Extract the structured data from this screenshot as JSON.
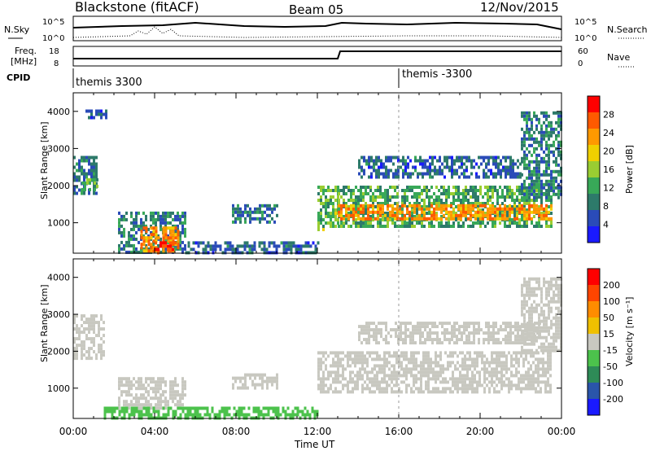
{
  "header": {
    "station": "Blackstone (fitACF)",
    "beam": "Beam 05",
    "date": "12/Nov/2015"
  },
  "top_panels": {
    "nsky_label": "N.Sky",
    "nsearch_label": "N.Search",
    "freq_label_1": "Freq.",
    "freq_label_2": "[MHz]",
    "nave_label": "Nave",
    "cpid_label": "CPID",
    "left_ticks_noise": [
      "10^5",
      "10^0"
    ],
    "right_ticks_noise": [
      "10^5",
      "10^0"
    ],
    "left_ticks_freq": [
      "18",
      "8"
    ],
    "right_ticks_nave": [
      "60",
      "0"
    ],
    "cpid_entries": [
      {
        "hour": 0.1,
        "name": "themis 3300"
      },
      {
        "hour": 16.0,
        "name": "themis -3300"
      }
    ]
  },
  "chart_data": [
    {
      "type": "heatmap",
      "name": "power",
      "ylabel": "Slant Range [km]",
      "xlim_hours": [
        0,
        24
      ],
      "ylim_km": [
        180,
        4500
      ],
      "yticks": [
        1000,
        2000,
        3000,
        4000
      ],
      "colorbar": {
        "label": "Power [dB]",
        "ticks": [
          4,
          8,
          12,
          16,
          20,
          24,
          28
        ],
        "colors": [
          "#1a1aff",
          "#2a4bb8",
          "#2d7a6a",
          "#38a858",
          "#9acd32",
          "#f0d000",
          "#ff9900",
          "#ff5a00",
          "#ff0000"
        ],
        "range": [
          0,
          32
        ]
      },
      "regions": [
        {
          "t": [
            0.0,
            1.2
          ],
          "r": [
            1800,
            2800
          ],
          "level": 8
        },
        {
          "t": [
            0.4,
            1.2
          ],
          "r": [
            1900,
            2200
          ],
          "level": 14
        },
        {
          "t": [
            0.6,
            1.6
          ],
          "r": [
            3800,
            4050
          ],
          "level": 6
        },
        {
          "t": [
            2.2,
            5.5
          ],
          "r": [
            200,
            1300
          ],
          "level": 9
        },
        {
          "t": [
            3.3,
            5.2
          ],
          "r": [
            200,
            900
          ],
          "level": 24
        },
        {
          "t": [
            4.0,
            5.0
          ],
          "r": [
            200,
            500
          ],
          "level": 30
        },
        {
          "t": [
            5.5,
            12.0
          ],
          "r": [
            200,
            500
          ],
          "level": 7
        },
        {
          "t": [
            7.8,
            10.0
          ],
          "r": [
            1000,
            1500
          ],
          "level": 8
        },
        {
          "t": [
            12.0,
            13.0
          ],
          "r": [
            800,
            2000
          ],
          "level": 14
        },
        {
          "t": [
            13.0,
            23.5
          ],
          "r": [
            900,
            2000
          ],
          "level": 12
        },
        {
          "t": [
            13.0,
            23.5
          ],
          "r": [
            1100,
            1500
          ],
          "level": 24
        },
        {
          "t": [
            14.0,
            22.0
          ],
          "r": [
            2200,
            2800
          ],
          "level": 7
        },
        {
          "t": [
            22.0,
            24.0
          ],
          "r": [
            1700,
            4000
          ],
          "level": 9
        }
      ]
    },
    {
      "type": "heatmap",
      "name": "velocity",
      "ylabel": "Slant Range [km]",
      "xlabel": "Time UT",
      "xlim_hours": [
        0,
        24
      ],
      "ylim_km": [
        180,
        4500
      ],
      "yticks": [
        1000,
        2000,
        3000,
        4000
      ],
      "xticks": [
        "00:00",
        "04:00",
        "08:00",
        "12:00",
        "16:00",
        "20:00",
        "00:00"
      ],
      "colorbar": {
        "label": "Velocity [m s⁻¹]",
        "ticks": [
          200,
          100,
          50,
          15,
          -15,
          -50,
          -100,
          -200
        ],
        "colors": [
          "#1a1aff",
          "#2a55aa",
          "#2e8b57",
          "#4cc24c",
          "#c8c8c0",
          "#f0c000",
          "#ff8c00",
          "#ff4500",
          "#ff0000"
        ],
        "range": [
          -250,
          250
        ]
      },
      "regions": [
        {
          "t": [
            0.0,
            1.5
          ],
          "r": [
            1800,
            3000
          ],
          "level": 0
        },
        {
          "t": [
            2.2,
            5.5
          ],
          "r": [
            500,
            1300
          ],
          "level": 0
        },
        {
          "t": [
            1.5,
            12.0
          ],
          "r": [
            200,
            500
          ],
          "level": -40
        },
        {
          "t": [
            7.8,
            10.0
          ],
          "r": [
            1000,
            1400
          ],
          "level": 0
        },
        {
          "t": [
            12.0,
            23.5
          ],
          "r": [
            900,
            2000
          ],
          "level": 0
        },
        {
          "t": [
            14.0,
            23.0
          ],
          "r": [
            2200,
            2800
          ],
          "level": 0
        },
        {
          "t": [
            22.0,
            24.0
          ],
          "r": [
            2000,
            4000
          ],
          "level": 0
        }
      ]
    }
  ]
}
